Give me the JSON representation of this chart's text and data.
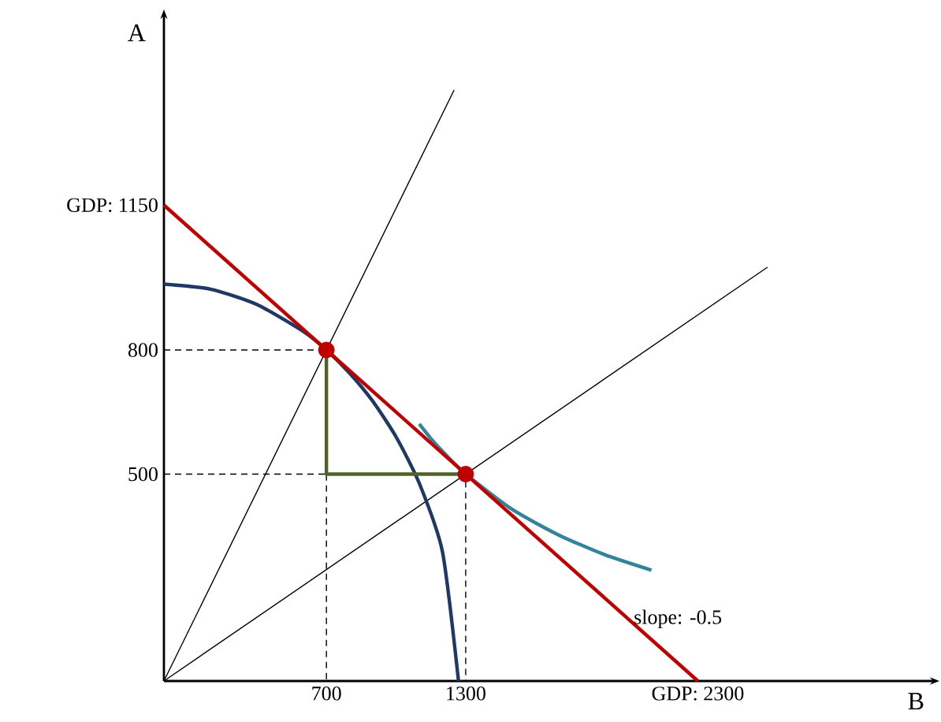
{
  "chart_data": {
    "type": "line",
    "xlabel": "B",
    "ylabel": "A",
    "xlim": [
      0,
      3300
    ],
    "ylim": [
      0,
      1600
    ],
    "xticks": [
      700,
      1300,
      {
        "value": 2300,
        "label": "GDP: 2300"
      }
    ],
    "yticks": [
      500,
      800,
      {
        "value": 1150,
        "label": "GDP: 1150"
      }
    ],
    "grid": false,
    "series": [
      {
        "type": "line",
        "color": "#000000",
        "line_style": "solid",
        "marker": "none",
        "x": [
          0,
          1250
        ],
        "values": [
          0,
          1428
        ]
      },
      {
        "type": "line",
        "color": "#000000",
        "line_style": "solid",
        "marker": "none",
        "x": [
          0,
          2600
        ],
        "values": [
          0,
          1000
        ]
      },
      {
        "type": "line",
        "color": "#000000",
        "line_style": "dashed",
        "marker": "none",
        "x": [
          0,
          700,
          700
        ],
        "values": [
          800,
          800,
          0
        ]
      },
      {
        "type": "line",
        "color": "#000000",
        "line_style": "dashed",
        "marker": "none",
        "x": [
          0,
          1300,
          1300
        ],
        "values": [
          500,
          500,
          0
        ]
      },
      {
        "type": "line",
        "color": "#1f3864",
        "line_style": "solid",
        "marker": "none",
        "x": [
          0,
          200,
          400,
          600,
          700,
          800,
          900,
          1000,
          1100,
          1200,
          1269
        ],
        "values": [
          959,
          947,
          910,
          845,
          800,
          744,
          676,
          590,
          478,
          312,
          0
        ]
      },
      {
        "type": "line",
        "color": "#4f6228",
        "line_style": "solid",
        "marker": "none",
        "x": [
          700,
          700,
          1300
        ],
        "values": [
          800,
          500,
          500
        ]
      },
      {
        "type": "line",
        "color": "#31849b",
        "line_style": "solid",
        "marker": "none",
        "x": [
          1100,
          1150,
          1200,
          1300,
          1500,
          1700,
          1900,
          2100
        ],
        "values": [
          621,
          586,
          555,
          500,
          415,
          353,
          305,
          268
        ]
      },
      {
        "type": "line",
        "color": "#c00000",
        "line_style": "solid",
        "marker": "none",
        "x": [
          0,
          2300
        ],
        "values": [
          1150,
          0
        ]
      },
      {
        "type": "scatter",
        "color": "#c00000",
        "marker": "circle",
        "x": [
          700,
          1300
        ],
        "values": [
          800,
          500
        ]
      }
    ],
    "annotations": [
      {
        "text": "slope: -0.5",
        "x": 2000,
        "y": 150
      }
    ]
  }
}
